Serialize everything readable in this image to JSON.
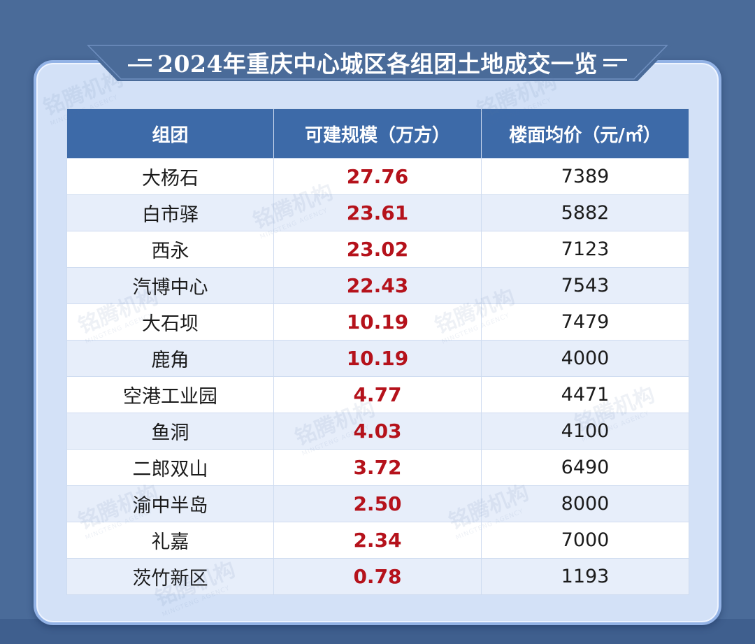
{
  "title": "2024年重庆中心城区各组团土地成交一览",
  "watermark": {
    "cn": "铭腾机构",
    "en": "MINGTENG AGENCY"
  },
  "colors": {
    "background": "#4a6b99",
    "card": "#d3e1f7",
    "header": "#3d6aa8",
    "value_red": "#b5121b"
  },
  "chart_data": {
    "type": "table",
    "title": "2024年重庆中心城区各组团土地成交一览",
    "columns": [
      "组团",
      "可建规模（万方）",
      "楼面均价（元/㎡）"
    ],
    "rows": [
      {
        "group": "大杨石",
        "scale": "27.76",
        "price": "7389"
      },
      {
        "group": "白市驿",
        "scale": "23.61",
        "price": "5882"
      },
      {
        "group": "西永",
        "scale": "23.02",
        "price": "7123"
      },
      {
        "group": "汽博中心",
        "scale": "22.43",
        "price": "7543"
      },
      {
        "group": "大石坝",
        "scale": "10.19",
        "price": "7479"
      },
      {
        "group": "鹿角",
        "scale": "10.19",
        "price": "4000"
      },
      {
        "group": "空港工业园",
        "scale": "4.77",
        "price": "4471"
      },
      {
        "group": "鱼洞",
        "scale": "4.03",
        "price": "4100"
      },
      {
        "group": "二郎双山",
        "scale": "3.72",
        "price": "6490"
      },
      {
        "group": "渝中半岛",
        "scale": "2.50",
        "price": "8000"
      },
      {
        "group": "礼嘉",
        "scale": "2.34",
        "price": "7000"
      },
      {
        "group": "茨竹新区",
        "scale": "0.78",
        "price": "1193"
      }
    ]
  }
}
